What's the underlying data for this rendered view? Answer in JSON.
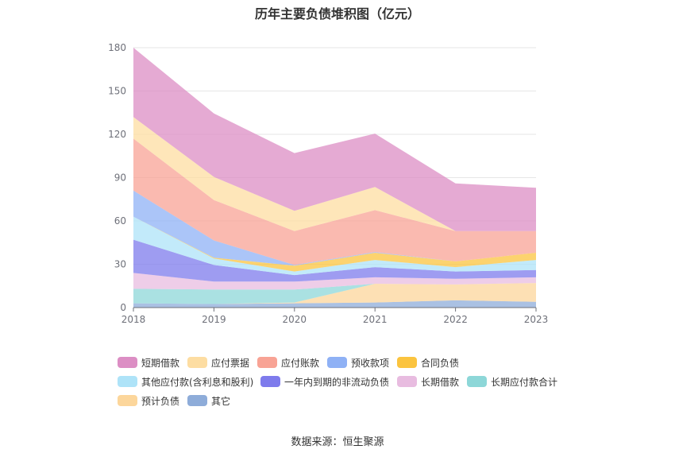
{
  "chart_data": {
    "type": "area",
    "stacked": true,
    "title": "历年主要负债堆积图（亿元）",
    "categories": [
      "2018",
      "2019",
      "2020",
      "2021",
      "2022",
      "2023"
    ],
    "ylim": [
      0,
      180
    ],
    "yticks": [
      0,
      30,
      60,
      90,
      120,
      150,
      180
    ],
    "grid": true,
    "legend_position": "bottom",
    "series": [
      {
        "name": "其它",
        "color": "#8eacd9",
        "values": [
          3,
          2.5,
          3,
          3.5,
          5,
          4
        ]
      },
      {
        "name": "预计负债",
        "color": "#fcd69b",
        "values": [
          0,
          0,
          0.5,
          13,
          11,
          13
        ]
      },
      {
        "name": "长期应付款合计",
        "color": "#8dd7d8",
        "values": [
          10,
          10,
          9,
          0,
          0,
          0
        ]
      },
      {
        "name": "长期借款",
        "color": "#e8bce0",
        "values": [
          11,
          5.5,
          5.5,
          4.5,
          4,
          4
        ]
      },
      {
        "name": "一年内到期的非流动负债",
        "color": "#7e7bec",
        "values": [
          23,
          11.5,
          4.5,
          7,
          5,
          5
        ]
      },
      {
        "name": "其他应付款(含利息和股利)",
        "color": "#aee3f8",
        "values": [
          16,
          4.5,
          2.5,
          5,
          3,
          7
        ]
      },
      {
        "name": "合同负债",
        "color": "#fbc43f",
        "values": [
          0,
          0.5,
          4,
          5,
          4,
          5
        ]
      },
      {
        "name": "预收款项",
        "color": "#8fb1f5",
        "values": [
          18,
          12,
          0.5,
          0.5,
          0,
          0
        ]
      },
      {
        "name": "应付账款",
        "color": "#f8a395",
        "values": [
          36,
          28,
          23.5,
          29,
          21,
          15
        ]
      },
      {
        "name": "应付票据",
        "color": "#fddda2",
        "values": [
          15,
          16,
          14,
          16,
          0,
          0
        ]
      },
      {
        "name": "短期借款",
        "color": "#dc8ec4",
        "values": [
          48,
          44,
          40,
          37,
          33,
          30
        ]
      }
    ],
    "legend_order": [
      "短期借款",
      "应付票据",
      "应付账款",
      "预收款项",
      "合同负债",
      "其他应付款(含利息和股利)",
      "一年内到期的非流动负债",
      "长期借款",
      "长期应付款合计",
      "预计负债",
      "其它"
    ]
  },
  "source_text": "数据来源：恒生聚源"
}
